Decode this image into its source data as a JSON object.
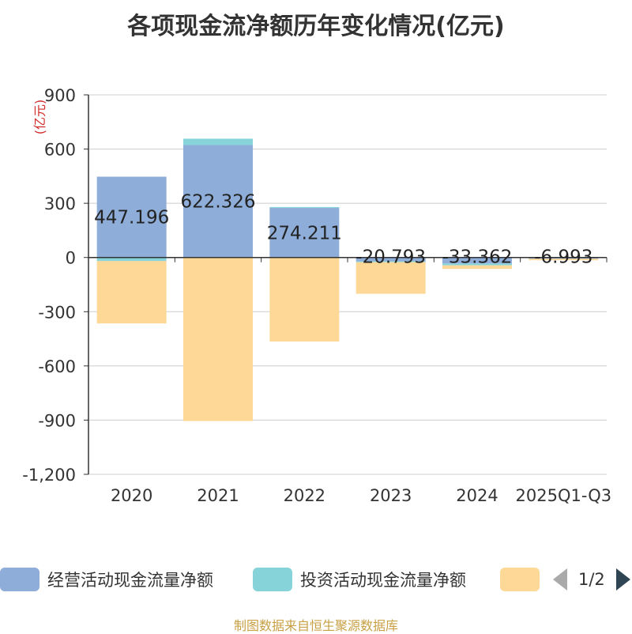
{
  "chart_data": {
    "type": "bar",
    "stacked": true,
    "title": "各项现金流净额历年变化情况(亿元)",
    "ylabel": "(亿元)",
    "ylim": [
      -1200,
      900
    ],
    "yticks": [
      900,
      600,
      300,
      0,
      -300,
      -600,
      -900,
      -1200
    ],
    "ytick_labels": [
      "900",
      "600",
      "300",
      "0",
      "-300",
      "-600",
      "-900",
      "-1,200"
    ],
    "categories": [
      "2020",
      "2021",
      "2022",
      "2023",
      "2024",
      "2025Q1-Q3"
    ],
    "series": [
      {
        "name": "经营活动现金流量净额",
        "color": "#8eadd9",
        "values": [
          447.196,
          622.326,
          274.211,
          -20.793,
          -33.362,
          -6.993
        ]
      },
      {
        "name": "投资活动现金流量净额",
        "color": "#86d4d9",
        "values": [
          -20,
          35,
          5,
          -5,
          -10,
          0
        ]
      },
      {
        "name": "",
        "color": "#fed896",
        "values": [
          -345,
          -905,
          -465,
          -175,
          -20,
          -8
        ]
      }
    ],
    "data_labels": [
      "447.196",
      "622.326",
      "274.211",
      "-20.793",
      "-33.362",
      "-6.993"
    ],
    "legend_position": "bottom",
    "grid": true
  },
  "legend": {
    "page": "1/2"
  },
  "source": "制图数据来自恒生聚源数据库"
}
